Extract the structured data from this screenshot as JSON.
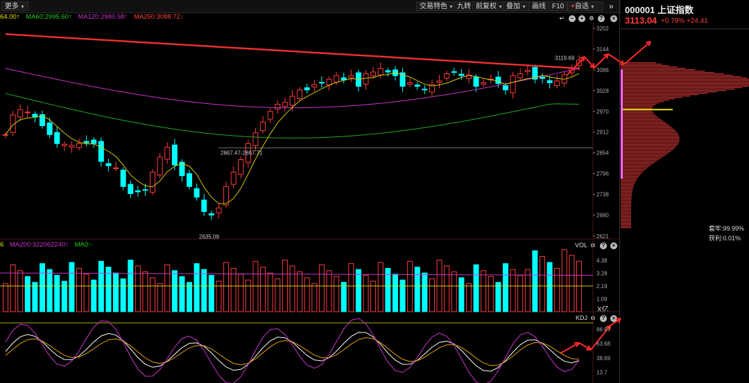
{
  "toolbar": {
    "more_label": "更多",
    "buttons": [
      {
        "label": "交易特色",
        "caret": true
      },
      {
        "label": "九转",
        "caret": false
      },
      {
        "label": "前复权",
        "caret": true
      },
      {
        "label": "叠加",
        "caret": true
      },
      {
        "label": "画线",
        "caret": false
      },
      {
        "label": "F10",
        "caret": false
      },
      {
        "label": "自选",
        "caret": true
      }
    ],
    "expand_glyph": "»"
  },
  "ma_legend": {
    "ma_partial": "64.00↑",
    "ma60": "MA60:2995.60↑",
    "ma120": "MA120:2980.58↑",
    "ma250": "MA250:3088.72↓"
  },
  "vol_legend": {
    "partial": "6",
    "ma200": "MA200:322062240↑",
    "ma0": "MA0:-"
  },
  "panels": {
    "vol_label": "VOL",
    "kdj_label": "KDJ",
    "vol_unit": "X亿"
  },
  "annotations": {
    "high_label": "3119.69",
    "mid_label": "2867.47-2867.71",
    "low_label": "2635.09"
  },
  "right_panel": {
    "code": "000001",
    "name": "上证指数",
    "price": "3113.04",
    "pct": "+0.79%",
    "change": "+24.41",
    "trapped": "套牢:99.99%",
    "profit": "获利:0.01%"
  },
  "colors": {
    "up": "#ff3b3b",
    "down": "#00ffff",
    "ma250": "#e83030",
    "ma120": "#cc33cc",
    "ma60": "#22aa22",
    "ma5": "#d4c800"
  },
  "chart_data": [
    {
      "type": "candlestick",
      "ylim": [
        2621,
        3202
      ],
      "y_ticks": [
        3202,
        3144,
        3086,
        3028,
        2970,
        2912,
        2854,
        2796,
        2738,
        2680,
        2621
      ],
      "close_approx": [
        2905,
        2960,
        2975,
        2968,
        2955,
        2930,
        2905,
        2880,
        2878,
        2875,
        2880,
        2882,
        2880,
        2830,
        2818,
        2812,
        2760,
        2740,
        2745,
        2750,
        2800,
        2842,
        2870,
        2820,
        2790,
        2760,
        2730,
        2690,
        2680,
        2700,
        2760,
        2800,
        2835,
        2880,
        2910,
        2940,
        2970,
        2990,
        2995,
        3012,
        3030,
        3030,
        3045,
        3050,
        3060,
        3070,
        3058,
        3070,
        3040,
        3075,
        3080,
        3090,
        3080,
        3070,
        3040,
        3050,
        3040,
        3030,
        3045,
        3055,
        3075,
        3080,
        3070,
        3072,
        3040,
        3050,
        3060,
        3048,
        3030,
        3070,
        3075,
        3085,
        3060,
        3062,
        3050,
        3055,
        3072,
        3090,
        3113
      ]
    },
    {
      "type": "bar",
      "title": "VOL",
      "y_ticks": [
        4.38,
        3.28,
        2.19,
        1.09
      ],
      "unit": "X亿"
    },
    {
      "type": "line",
      "title": "KDJ",
      "y_ticks": [
        88.67,
        63.68,
        38.69,
        13.7
      ]
    }
  ]
}
